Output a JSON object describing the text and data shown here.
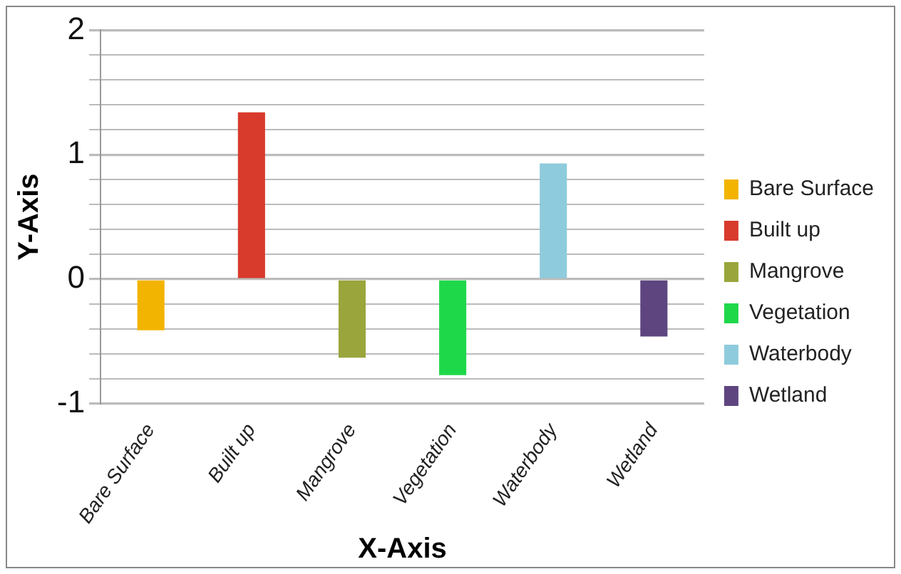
{
  "chart_data": {
    "type": "bar",
    "xlabel": "X-Axis",
    "ylabel": "Y-Axis",
    "categories": [
      "Bare Surface",
      "Built up",
      "Mangrove",
      "Vegetation",
      "Waterbody",
      "Wetland"
    ],
    "series": [
      {
        "name": "Bare Surface",
        "color": "#f2b400",
        "values": [
          -0.41,
          null,
          null,
          null,
          null,
          null
        ]
      },
      {
        "name": "Built up",
        "color": "#d83a2c",
        "values": [
          null,
          1.34,
          null,
          null,
          null,
          null
        ]
      },
      {
        "name": "Mangrove",
        "color": "#9aa53c",
        "values": [
          null,
          null,
          -0.63,
          null,
          null,
          null
        ]
      },
      {
        "name": "Vegetation",
        "color": "#1fd84a",
        "values": [
          null,
          null,
          null,
          -0.77,
          null,
          null
        ]
      },
      {
        "name": "Waterbody",
        "color": "#8ecbdc",
        "values": [
          null,
          null,
          null,
          null,
          0.93,
          null
        ]
      },
      {
        "name": "Wetland",
        "color": "#5e4580",
        "values": [
          null,
          null,
          null,
          null,
          null,
          -0.46
        ]
      }
    ],
    "ylim": [
      -1,
      2
    ],
    "yticks": [
      -1,
      {
        "value": -0.8,
        "label": null
      },
      {
        "value": -0.6,
        "label": null
      },
      {
        "value": -0.4,
        "label": null
      },
      {
        "value": -0.2,
        "label": null
      },
      0,
      {
        "value": 0.2,
        "label": null
      },
      {
        "value": 0.4,
        "label": null
      },
      {
        "value": 0.6,
        "label": null
      },
      {
        "value": 0.8,
        "label": null
      },
      1,
      {
        "value": 1.2,
        "label": null
      },
      {
        "value": 1.4,
        "label": null
      },
      {
        "value": 1.6,
        "label": null
      },
      {
        "value": 1.8,
        "label": null
      },
      2
    ],
    "grid": "y",
    "legend": "right"
  }
}
